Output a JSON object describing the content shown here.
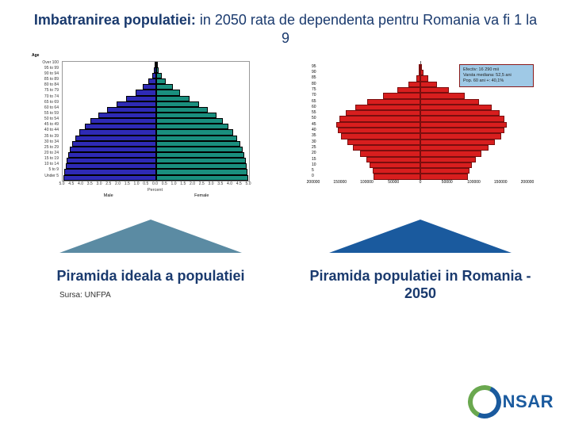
{
  "title_bold": "Imbatranirea populatiei:",
  "title_rest": " in 2050 rata de dependenta pentru Romania va fi 1 la 9",
  "chart1": {
    "type": "population-pyramid",
    "age_title": "Age",
    "age_labels": [
      "Over 100",
      "95 to 99",
      "90 to 94",
      "85 to 89",
      "80 to 84",
      "75 to 79",
      "70 to 74",
      "65 to 69",
      "60 to 64",
      "55 to 59",
      "50 to 54",
      "45 to 49",
      "40 to 44",
      "35 to 39",
      "30 to 34",
      "25 to 29",
      "20 to 24",
      "15 to 19",
      "10 to 14",
      "5 to 9",
      "Under 5"
    ],
    "male_pct": [
      0.05,
      0.1,
      0.2,
      0.4,
      0.7,
      1.1,
      1.6,
      2.1,
      2.6,
      3.1,
      3.5,
      3.8,
      4.1,
      4.3,
      4.5,
      4.6,
      4.7,
      4.8,
      4.85,
      4.9,
      4.95
    ],
    "female_pct": [
      0.07,
      0.15,
      0.3,
      0.55,
      0.9,
      1.3,
      1.8,
      2.3,
      2.8,
      3.25,
      3.6,
      3.9,
      4.15,
      4.35,
      4.55,
      4.65,
      4.75,
      4.82,
      4.88,
      4.92,
      4.96
    ],
    "x_ticks": [
      5.0,
      4.5,
      4.0,
      3.5,
      3.0,
      2.5,
      2.0,
      1.5,
      1.0,
      0.5,
      0.0,
      0.5,
      1.0,
      1.5,
      2.0,
      2.5,
      3.0,
      3.5,
      4.0,
      4.5,
      5.0
    ],
    "x_max": 5.0,
    "x_label": "Percent",
    "male_label": "Male",
    "female_label": "Female",
    "male_color": "#2e2ab5",
    "female_color": "#1a8f7e",
    "bar_border_color": "#000000",
    "plot_border_color": "#999999",
    "caption": "Piramida ideala a populatiei",
    "arrow_color": "#5b8ba3"
  },
  "chart2": {
    "type": "population-pyramid",
    "age_labels": [
      "95",
      "90",
      "85",
      "80",
      "75",
      "70",
      "65",
      "60",
      "55",
      "50",
      "45",
      "40",
      "35",
      "30",
      "25",
      "20",
      "15",
      "10",
      "5",
      "0"
    ],
    "male": [
      1000,
      3000,
      9000,
      24000,
      48000,
      78000,
      110000,
      135000,
      155000,
      168000,
      175000,
      172000,
      165000,
      152000,
      140000,
      125000,
      112000,
      105000,
      100000,
      98000
    ],
    "female": [
      3000,
      7000,
      16000,
      34000,
      60000,
      92000,
      122000,
      148000,
      166000,
      176000,
      180000,
      175000,
      168000,
      155000,
      142000,
      128000,
      115000,
      107000,
      102000,
      99000
    ],
    "x_ticks_left": [
      200000,
      150000,
      100000,
      50000,
      0
    ],
    "x_ticks_right": [
      50000,
      100000,
      150000,
      200000
    ],
    "x_max": 200000,
    "color": "#d81e1e",
    "bar_border_color": "#7a0e0e",
    "info_box": {
      "line1": "Efectiv: 16 290 mii",
      "line2": "Varsta mediana: 52,5 ani",
      "line3": "Pop. 60 ani +: 40,1%",
      "bg": "#9fc9e6",
      "border": "#8a1a1a"
    },
    "caption": "Piramida populatiei in Romania - 2050",
    "arrow_color": "#1a5a9e"
  },
  "source_label": "Sursa: UNFPA",
  "logo_text": "NSAR",
  "logo_green": "#6aa84f",
  "logo_blue": "#1a5a9e"
}
